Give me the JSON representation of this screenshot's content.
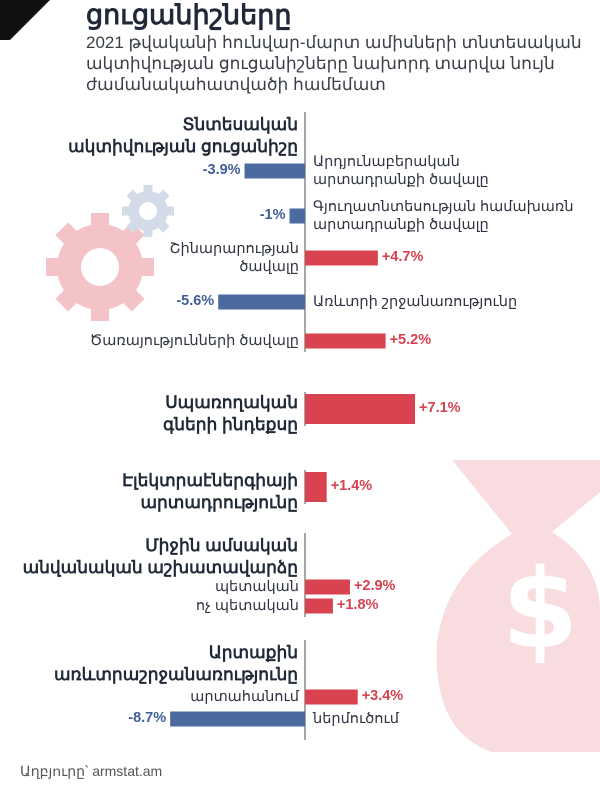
{
  "title": "ցուցանիշները",
  "subtitle_lines": [
    "2021 թվականի հունվար-մարտ ամիսների տնտեսական",
    "ակտիվության ցուցանիշները նախորդ տարվա նույն",
    "ժամանակահատվածի համեմատ"
  ],
  "colors": {
    "negative": "#4a6aa0",
    "positive": "#d9434f",
    "axis": "#6b6b6b"
  },
  "icons": [
    "gear-icon",
    "money-bag-icon"
  ],
  "chart_data": {
    "type": "bar",
    "orientation": "horizontal",
    "unit": "%",
    "sections": [
      {
        "title_lines": [
          "Տնտեսական",
          "ակտիվության ցուցանիշը"
        ],
        "items": [
          {
            "label_lines": [
              "Արդյունաբերական",
              "արտադրանքի ծավալը"
            ],
            "value": -3.9,
            "display": "-3.9%"
          },
          {
            "label_lines": [
              "Գյուղատնտեսության համախառն",
              "արտադրանքի ծավալը"
            ],
            "value": -1,
            "display": "-1%"
          },
          {
            "label_lines": [
              "Շինարարության",
              "ծավալը"
            ],
            "value": 4.7,
            "display": "+4.7%"
          },
          {
            "label_lines": [
              "Առևտրի շրջանառությունը"
            ],
            "value": -5.6,
            "display": "-5.6%"
          },
          {
            "label_lines": [
              "Ծառայությունների ծավալը"
            ],
            "value": 5.2,
            "display": "+5.2%"
          }
        ]
      },
      {
        "title_lines": [
          "Սպառողական",
          "գների ինդեքսը"
        ],
        "items": [
          {
            "label_lines": [],
            "value": 7.1,
            "display": "+7.1%"
          }
        ]
      },
      {
        "title_lines": [
          "Էլեկտրաէներգիայի",
          "արտադրությունը"
        ],
        "items": [
          {
            "label_lines": [],
            "value": 1.4,
            "display": "+1.4%"
          }
        ]
      },
      {
        "title_lines": [
          "Միջին ամսական",
          "անվանական աշխատավարձը"
        ],
        "items": [
          {
            "label_lines": [
              "պետական"
            ],
            "value": 2.9,
            "display": "+2.9%"
          },
          {
            "label_lines": [
              "ոչ պետական"
            ],
            "value": 1.8,
            "display": "+1.8%"
          }
        ]
      },
      {
        "title_lines": [
          "Արտաքին",
          "առևտրաշրջանառությունը"
        ],
        "items": [
          {
            "label_lines": [
              "արտահանում"
            ],
            "value": 3.4,
            "display": "+3.4%"
          },
          {
            "label_lines": [
              "ներմուծում"
            ],
            "value": -8.7,
            "display": "-8.7%"
          }
        ]
      }
    ]
  },
  "source": "Աղբյուրը՝ armstat.am"
}
